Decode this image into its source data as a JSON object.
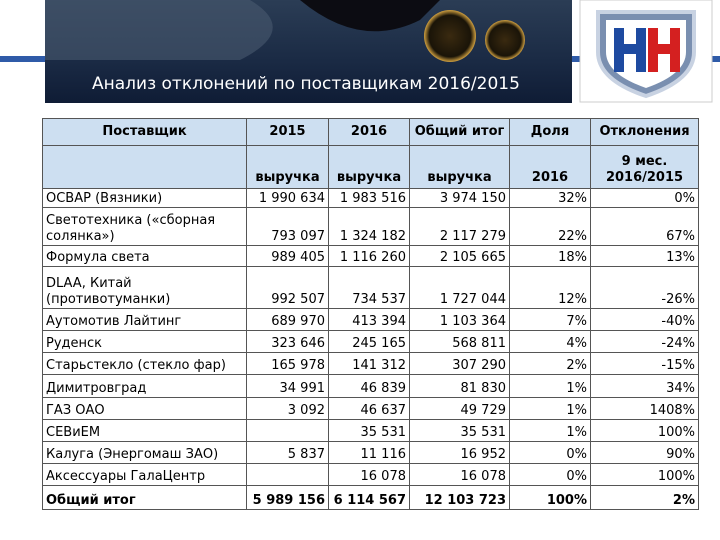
{
  "header": {
    "title": "Анализ отклонений по поставщикам 2016/2015"
  },
  "table": {
    "columns": [
      "Поставщик",
      "2015",
      "2016",
      "Общий итог",
      "Доля",
      "Отклонения"
    ],
    "subheader": [
      "выручка",
      "выручка",
      "выручка",
      "2016",
      "9 мес. 2016/2015"
    ],
    "rows": [
      [
        "ОСВАР (Вязники)",
        "1 990 634",
        "1 983 516",
        "3 974 150",
        "32%",
        "0%"
      ],
      [
        "Светотехника («сборная солянка»)",
        "793 097",
        "1 324 182",
        "2 117 279",
        "22%",
        "67%"
      ],
      [
        "Формула света",
        "989 405",
        "1 116 260",
        "2 105 665",
        "18%",
        "13%"
      ],
      [
        "DLAA, Китай (противотуманки)",
        "992 507",
        "734 537",
        "1 727 044",
        "12%",
        "-26%"
      ],
      [
        "Аутомотив Лайтинг",
        "689 970",
        "413 394",
        "1 103 364",
        "7%",
        "-40%"
      ],
      [
        "Руденск",
        "323 646",
        "245 165",
        "568 811",
        "4%",
        "-24%"
      ],
      [
        "Старьстекло (стекло фар)",
        "165 978",
        "141 312",
        "307 290",
        "2%",
        "-15%"
      ],
      [
        "Димитровград",
        "34 991",
        "46 839",
        "81 830",
        "1%",
        "34%"
      ],
      [
        "ГАЗ ОАО",
        "3 092",
        "46 637",
        "49 729",
        "1%",
        "1408%"
      ],
      [
        "СЕВиЕМ",
        null,
        "35 531",
        "35 531",
        "1%",
        "100%"
      ],
      [
        "Калуга (Энергомаш ЗАО)",
        "5 837",
        "11 116",
        "16 952",
        "0%",
        "90%"
      ],
      [
        "Аксессуары ГалаЦентр",
        null,
        "16 078",
        "16 078",
        "0%",
        "100%"
      ],
      [
        "Общий итог",
        "5 989 156",
        "6 114 567",
        "12 103 723",
        "100%",
        "2%"
      ]
    ]
  }
}
